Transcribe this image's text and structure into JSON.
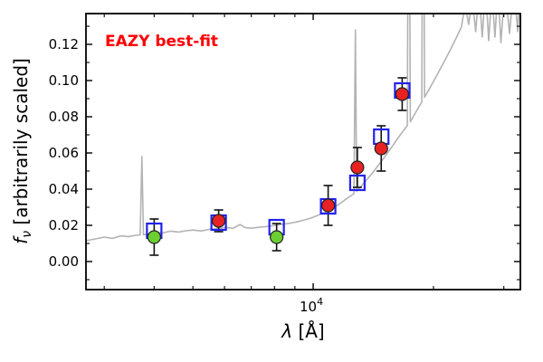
{
  "chart_data": {
    "type": "line",
    "annotation": "EAZY best-fit",
    "annotation_color": "#ff0000",
    "xlabel_symbol": "λ",
    "xlabel_units": " [Å]",
    "ylabel_symbol": "f",
    "ylabel_subscript": "ν",
    "ylabel_rest": " [arbitrarily scaled]",
    "xscale": "log",
    "xlim": [
      2700,
      33000
    ],
    "ylim": [
      -0.0155,
      0.137
    ],
    "yticks": {
      "values": [
        0.0,
        0.02,
        0.04,
        0.06,
        0.08,
        0.1,
        0.12
      ],
      "labels": [
        "0.00",
        "0.02",
        "0.04",
        "0.06",
        "0.08",
        "0.10",
        "0.12"
      ]
    },
    "y_minor_ticks": [
      -0.01,
      0.01,
      0.03,
      0.05,
      0.07,
      0.09,
      0.11,
      0.13
    ],
    "x_major_tick": {
      "value": 10000,
      "label_base": "10",
      "label_exp": "4"
    },
    "x_minor_ticks": [
      3000,
      4000,
      5000,
      6000,
      7000,
      8000,
      9000,
      20000,
      30000
    ],
    "template_spectrum": {
      "name": "best-fit template spectrum",
      "color": "#b3b3b3",
      "points": [
        [
          2700,
          0.0115
        ],
        [
          2850,
          0.0125
        ],
        [
          3000,
          0.0135
        ],
        [
          3150,
          0.0128
        ],
        [
          3300,
          0.0142
        ],
        [
          3450,
          0.0138
        ],
        [
          3600,
          0.0145
        ],
        [
          3690,
          0.0148
        ],
        [
          3727,
          0.058
        ],
        [
          3760,
          0.0148
        ],
        [
          3900,
          0.0152
        ],
        [
          4050,
          0.0162
        ],
        [
          4200,
          0.0158
        ],
        [
          4400,
          0.0168
        ],
        [
          4600,
          0.0163
        ],
        [
          4800,
          0.017
        ],
        [
          5000,
          0.0174
        ],
        [
          5250,
          0.0169
        ],
        [
          5500,
          0.0178
        ],
        [
          5750,
          0.0183
        ],
        [
          6000,
          0.0188
        ],
        [
          6300,
          0.0184
        ],
        [
          6563,
          0.0205
        ],
        [
          6750,
          0.0188
        ],
        [
          7000,
          0.0184
        ],
        [
          7300,
          0.0189
        ],
        [
          7600,
          0.0193
        ],
        [
          7900,
          0.0198
        ],
        [
          8200,
          0.0203
        ],
        [
          8500,
          0.0208
        ],
        [
          8800,
          0.0213
        ],
        [
          9100,
          0.0219
        ],
        [
          9400,
          0.0227
        ],
        [
          9700,
          0.0235
        ],
        [
          10000,
          0.0245
        ],
        [
          10300,
          0.0256
        ],
        [
          10600,
          0.0268
        ],
        [
          10900,
          0.0281
        ],
        [
          11200,
          0.0295
        ],
        [
          11500,
          0.0311
        ],
        [
          11800,
          0.0328
        ],
        [
          12100,
          0.0346
        ],
        [
          12400,
          0.0362
        ],
        [
          12650,
          0.0375
        ],
        [
          12750,
          0.128
        ],
        [
          12850,
          0.0388
        ],
        [
          13100,
          0.041
        ],
        [
          13400,
          0.0434
        ],
        [
          13700,
          0.0459
        ],
        [
          14000,
          0.0484
        ],
        [
          14300,
          0.0509
        ],
        [
          14600,
          0.0535
        ],
        [
          14900,
          0.0561
        ],
        [
          15200,
          0.0587
        ],
        [
          15500,
          0.0613
        ],
        [
          15800,
          0.0639
        ],
        [
          16100,
          0.0665
        ],
        [
          16400,
          0.069
        ],
        [
          16700,
          0.0714
        ],
        [
          17000,
          0.0737
        ],
        [
          17200,
          0.0752
        ],
        [
          17350,
          0.3
        ],
        [
          17500,
          0.0772
        ],
        [
          17800,
          0.08
        ],
        [
          18100,
          0.0828
        ],
        [
          18400,
          0.0856
        ],
        [
          18700,
          0.0882
        ],
        [
          18850,
          0.3
        ],
        [
          19000,
          0.0908
        ],
        [
          19300,
          0.0934
        ],
        [
          19600,
          0.096
        ],
        [
          20000,
          0.0995
        ],
        [
          20500,
          0.1038
        ],
        [
          21000,
          0.1081
        ],
        [
          21500,
          0.1124
        ],
        [
          22000,
          0.1167
        ],
        [
          22500,
          0.121
        ],
        [
          23000,
          0.1253
        ],
        [
          23500,
          0.1296
        ],
        [
          24000,
          0.142
        ],
        [
          24500,
          0.131
        ],
        [
          25000,
          0.146
        ],
        [
          25500,
          0.127
        ],
        [
          26000,
          0.15
        ],
        [
          26500,
          0.124
        ],
        [
          27000,
          0.152
        ],
        [
          27500,
          0.122
        ],
        [
          28000,
          0.149
        ],
        [
          28500,
          0.124
        ],
        [
          29000,
          0.151
        ],
        [
          29500,
          0.121
        ],
        [
          30200,
          0.152
        ],
        [
          31000,
          0.126
        ],
        [
          31800,
          0.153
        ],
        [
          32500,
          0.127
        ],
        [
          33000,
          0.154
        ]
      ]
    },
    "template_photometry": {
      "name": "template fluxes",
      "marker": "open-square",
      "color": "#2222ee",
      "points": [
        [
          4000,
          0.017
        ],
        [
          5800,
          0.0215
        ],
        [
          8100,
          0.019
        ],
        [
          10900,
          0.0305
        ],
        [
          12900,
          0.0435
        ],
        [
          14800,
          0.069
        ],
        [
          16700,
          0.0945
        ]
      ]
    },
    "observed_photometry": {
      "name": "observed fluxes",
      "marker": "circle",
      "edge_color": "#222222",
      "error_color": "#111111",
      "points": [
        {
          "lambda": 4000,
          "flux": 0.0135,
          "err": 0.01,
          "color": "#6ccf31"
        },
        {
          "lambda": 5800,
          "flux": 0.0225,
          "err": 0.006,
          "color": "#e82222"
        },
        {
          "lambda": 8100,
          "flux": 0.0135,
          "err": 0.0075,
          "color": "#6ccf31"
        },
        {
          "lambda": 10900,
          "flux": 0.031,
          "err": 0.011,
          "color": "#e82222"
        },
        {
          "lambda": 12900,
          "flux": 0.052,
          "err": 0.011,
          "color": "#e82222"
        },
        {
          "lambda": 14800,
          "flux": 0.0625,
          "err": 0.0125,
          "color": "#e82222"
        },
        {
          "lambda": 16700,
          "flux": 0.0925,
          "err": 0.009,
          "color": "#e82222"
        }
      ]
    }
  }
}
